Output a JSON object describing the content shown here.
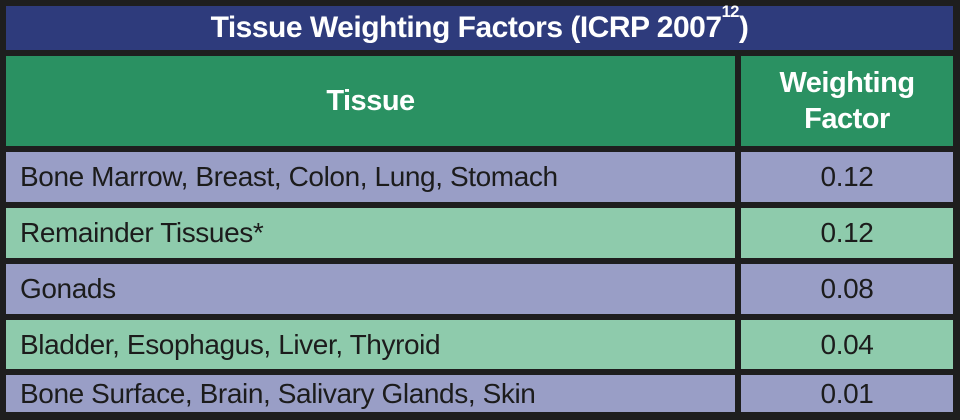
{
  "table": {
    "title_main": "Tissue Weighting Factors (ICRP 2007",
    "title_sup": "12",
    "title_close": ")",
    "columns": {
      "tissue": "Tissue",
      "factor": "Weighting Factor"
    },
    "rows": [
      {
        "tissue": "Bone Marrow, Breast, Colon, Lung, Stomach",
        "factor": "0.12"
      },
      {
        "tissue": "Remainder Tissues*",
        "factor": "0.12"
      },
      {
        "tissue": "Gonads",
        "factor": "0.08"
      },
      {
        "tissue": "Bladder, Esophagus, Liver, Thyroid",
        "factor": "0.04"
      },
      {
        "tissue": "Bone Surface, Brain, Salivary Glands, Skin",
        "factor": "0.01"
      }
    ]
  },
  "colors": {
    "border": "#1e1e1e",
    "navy": "#2e3b7c",
    "green": "#2a9162",
    "rowlav": "#999ec6",
    "rowgreen": "#8ecbac",
    "textdark": "#1c1c1c",
    "white": "#ffffff"
  }
}
